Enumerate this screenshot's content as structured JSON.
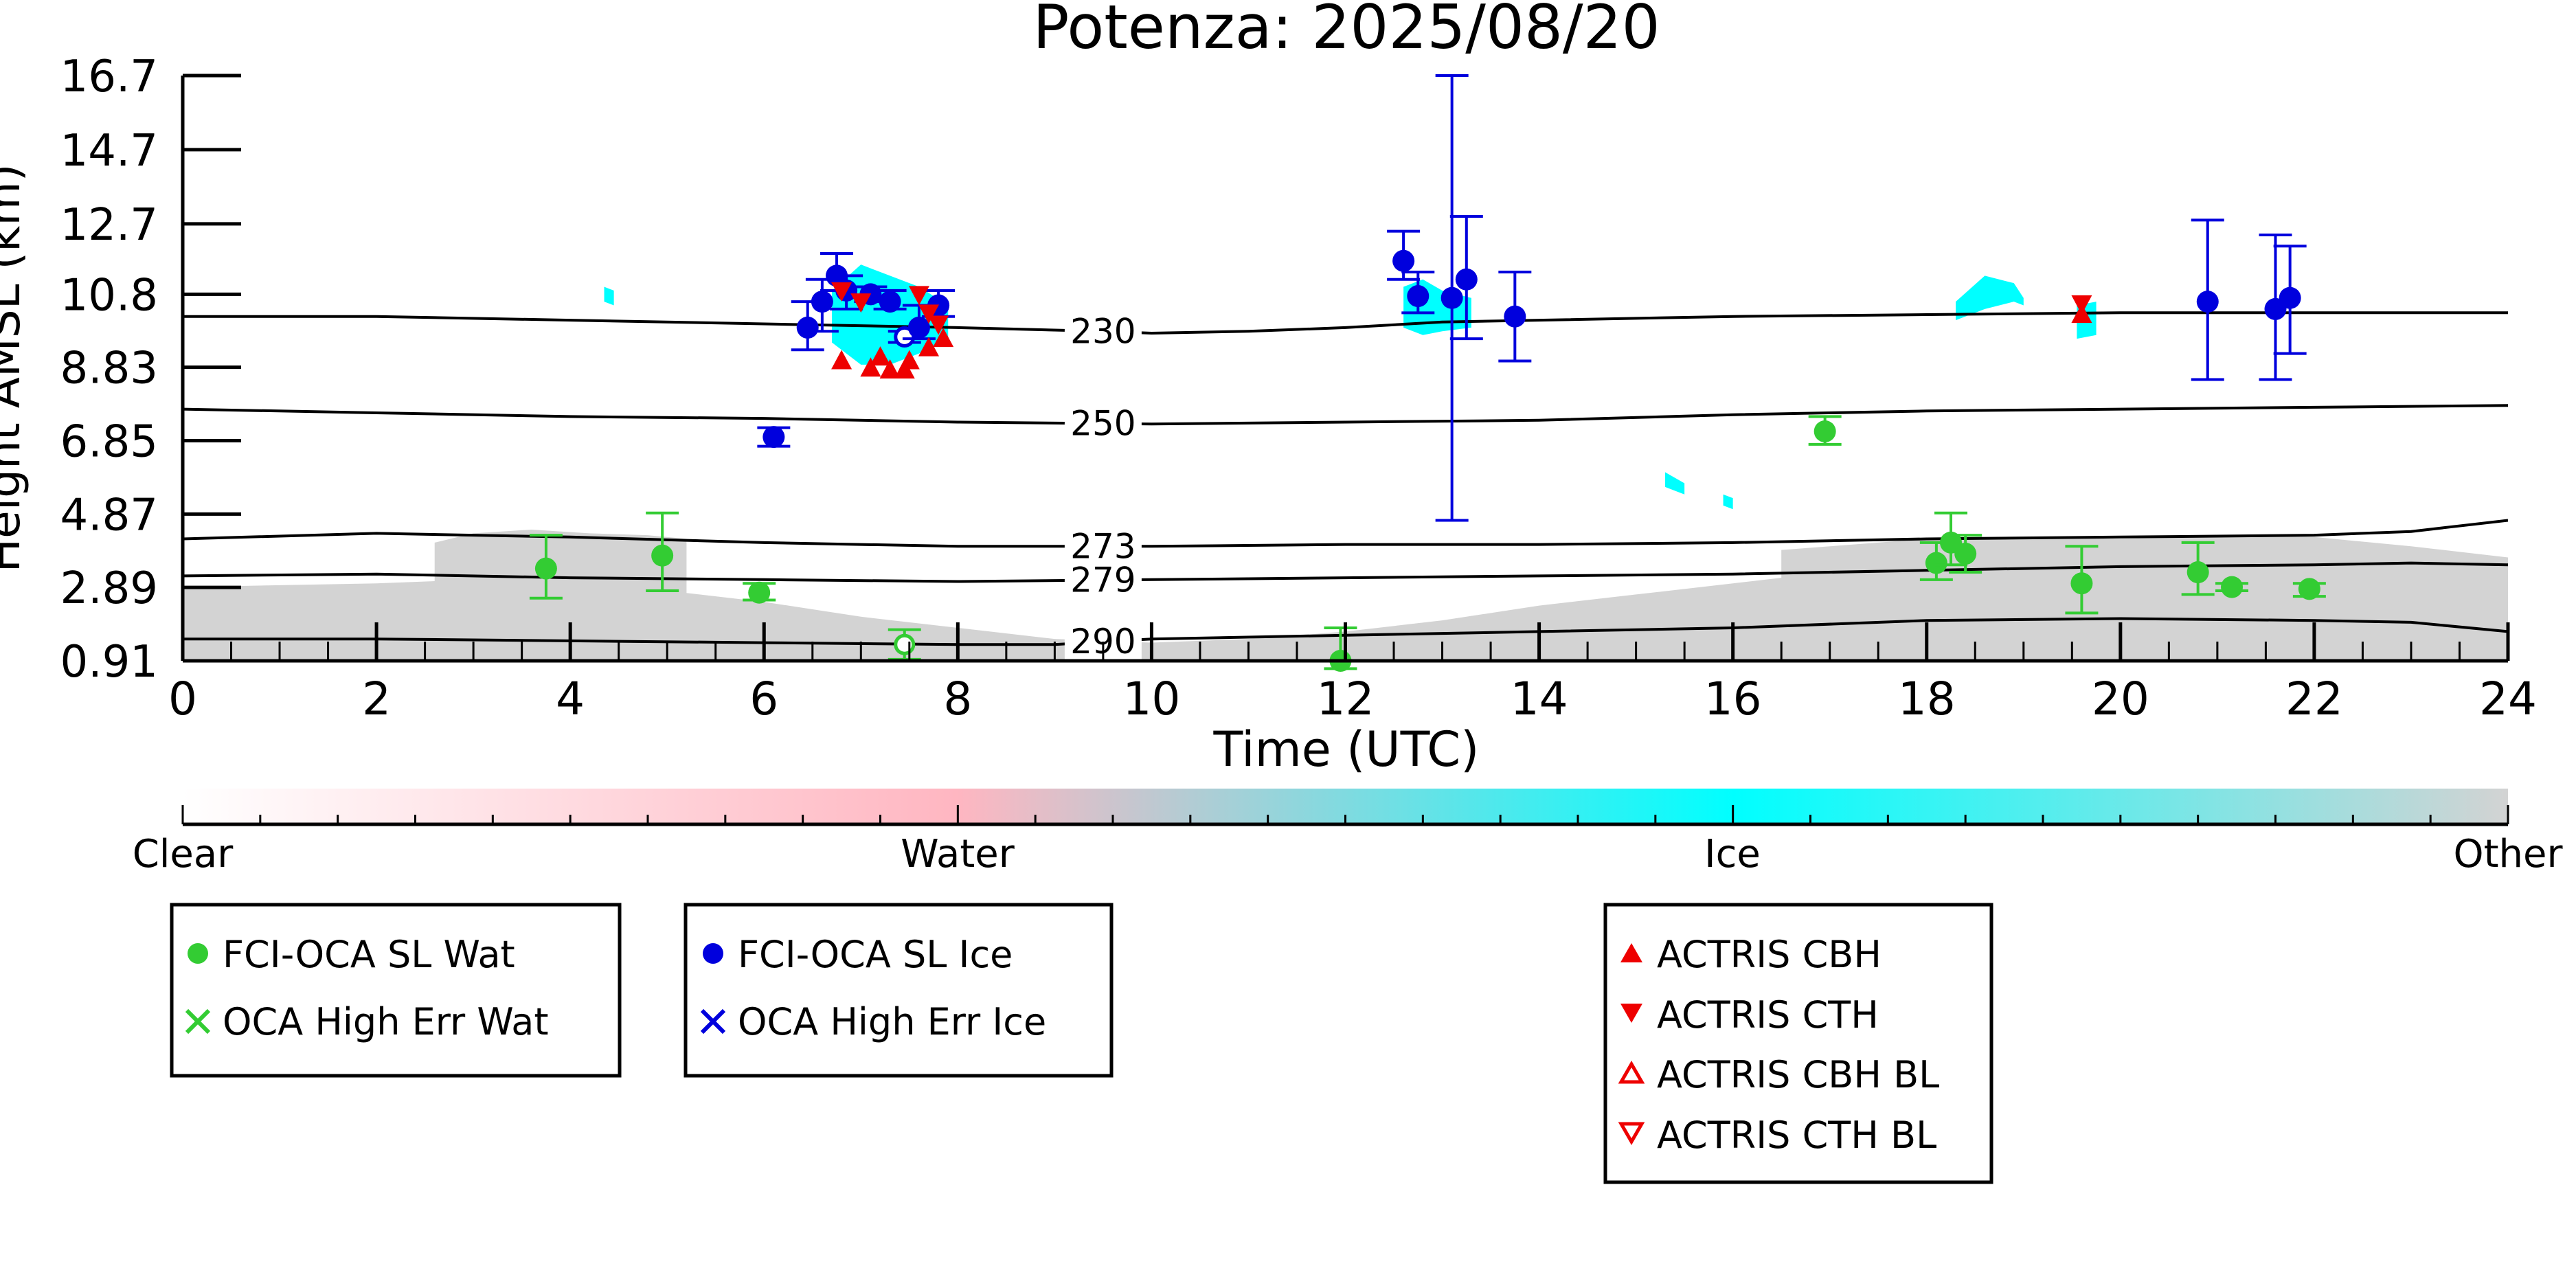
{
  "chart_data": {
    "type": "scatter",
    "title": "Potenza: 2025/08/20",
    "xlabel": "Time (UTC)",
    "ylabel": "Height AMSL (km)",
    "xlim": [
      0,
      24
    ],
    "ylim": [
      0.91,
      16.7
    ],
    "x_ticks": [
      "0",
      "2",
      "4",
      "6",
      "8",
      "10",
      "12",
      "14",
      "16",
      "18",
      "20",
      "22",
      "24"
    ],
    "y_ticks": [
      "0.91",
      "2.89",
      "4.87",
      "6.85",
      "8.83",
      "10.8",
      "12.7",
      "14.7",
      "16.7"
    ],
    "colorbar": {
      "labels": [
        "Clear",
        "Water",
        "Ice",
        "Other"
      ],
      "colors": [
        "#ffffff",
        "#ffb6c1",
        "#00ffff",
        "#d3d3d3"
      ]
    },
    "legend_water": [
      "FCI-OCA SL Wat",
      "OCA High Err Wat"
    ],
    "legend_ice": [
      "FCI-OCA SL Ice",
      "OCA High Err Ice"
    ],
    "legend_actris": [
      "ACTRIS CBH",
      "ACTRIS CTH",
      "ACTRIS CBH BL",
      "ACTRIS CTH BL"
    ],
    "series_colors": {
      "water": "#33cc33",
      "ice": "#0000dd",
      "actris": "#ee0000",
      "isotherm": "#000000"
    },
    "isotherms": [
      {
        "label": "230",
        "label_x": 9.5,
        "points": [
          [
            0,
            10.2
          ],
          [
            2,
            10.2
          ],
          [
            4,
            10.1
          ],
          [
            6,
            10.0
          ],
          [
            8,
            9.9
          ],
          [
            9.5,
            9.8
          ],
          [
            10,
            9.75
          ],
          [
            11,
            9.8
          ],
          [
            12,
            9.9
          ],
          [
            13,
            10.05
          ],
          [
            14,
            10.1
          ],
          [
            16,
            10.2
          ],
          [
            18,
            10.25
          ],
          [
            20,
            10.3
          ],
          [
            22,
            10.3
          ],
          [
            24,
            10.3
          ]
        ]
      },
      {
        "label": "250",
        "label_x": 9.5,
        "points": [
          [
            0,
            7.7
          ],
          [
            2,
            7.6
          ],
          [
            4,
            7.5
          ],
          [
            6,
            7.45
          ],
          [
            8,
            7.35
          ],
          [
            10,
            7.3
          ],
          [
            12,
            7.35
          ],
          [
            14,
            7.4
          ],
          [
            16,
            7.55
          ],
          [
            18,
            7.65
          ],
          [
            20,
            7.7
          ],
          [
            22,
            7.75
          ],
          [
            24,
            7.8
          ]
        ]
      },
      {
        "label": "273",
        "label_x": 9.5,
        "points": [
          [
            0,
            4.2
          ],
          [
            2,
            4.35
          ],
          [
            4,
            4.25
          ],
          [
            6,
            4.1
          ],
          [
            8,
            4.0
          ],
          [
            10,
            4.0
          ],
          [
            12,
            4.05
          ],
          [
            14,
            4.05
          ],
          [
            16,
            4.1
          ],
          [
            18,
            4.2
          ],
          [
            20,
            4.25
          ],
          [
            22,
            4.3
          ],
          [
            23,
            4.4
          ],
          [
            24,
            4.7
          ]
        ]
      },
      {
        "label": "279",
        "label_x": 9.5,
        "points": [
          [
            0,
            3.2
          ],
          [
            2,
            3.25
          ],
          [
            4,
            3.15
          ],
          [
            6,
            3.1
          ],
          [
            8,
            3.05
          ],
          [
            10,
            3.1
          ],
          [
            12,
            3.15
          ],
          [
            14,
            3.2
          ],
          [
            16,
            3.25
          ],
          [
            18,
            3.35
          ],
          [
            20,
            3.45
          ],
          [
            22,
            3.5
          ],
          [
            23,
            3.55
          ],
          [
            24,
            3.5
          ]
        ]
      },
      {
        "label": "290",
        "label_x": 9.5,
        "points": [
          [
            0,
            1.5
          ],
          [
            2,
            1.5
          ],
          [
            4,
            1.45
          ],
          [
            6,
            1.4
          ],
          [
            8,
            1.35
          ],
          [
            9,
            1.35
          ],
          [
            10,
            1.5
          ],
          [
            12,
            1.6
          ],
          [
            14,
            1.7
          ],
          [
            16,
            1.8
          ],
          [
            18,
            2.0
          ],
          [
            20,
            2.05
          ],
          [
            22,
            2.0
          ],
          [
            23,
            1.95
          ],
          [
            24,
            1.7
          ]
        ]
      }
    ],
    "cloud_field": [
      {
        "phase": "other",
        "top": [
          [
            0,
            2.9
          ],
          [
            2,
            3.0
          ],
          [
            3,
            3.1
          ],
          [
            4,
            3.0
          ],
          [
            5,
            2.8
          ],
          [
            6,
            2.5
          ],
          [
            7,
            2.1
          ],
          [
            8,
            1.8
          ],
          [
            9,
            1.5
          ],
          [
            10,
            1.4
          ],
          [
            11,
            1.5
          ],
          [
            12,
            1.7
          ],
          [
            13,
            2.0
          ],
          [
            14,
            2.4
          ],
          [
            15,
            2.7
          ],
          [
            16,
            3.0
          ],
          [
            17,
            3.3
          ],
          [
            18,
            3.5
          ],
          [
            19,
            3.4
          ],
          [
            20,
            3.3
          ],
          [
            21,
            3.3
          ],
          [
            22,
            3.5
          ],
          [
            23,
            3.7
          ],
          [
            24,
            3.4
          ]
        ]
      },
      {
        "phase": "other",
        "top": [
          [
            16.5,
            3.9
          ],
          [
            17,
            4.0
          ],
          [
            18,
            4.2
          ],
          [
            19,
            4.25
          ],
          [
            20,
            4.2
          ],
          [
            21,
            4.3
          ],
          [
            22,
            4.25
          ],
          [
            23,
            4.0
          ],
          [
            24,
            3.7
          ]
        ]
      },
      {
        "phase": "other",
        "top": [
          [
            2.6,
            4.1
          ],
          [
            3.0,
            4.35
          ],
          [
            3.6,
            4.45
          ],
          [
            4.2,
            4.35
          ],
          [
            4.8,
            4.3
          ],
          [
            5.2,
            4.2
          ]
        ]
      },
      {
        "phase": "ice",
        "top": [
          [
            6.7,
            10.9
          ],
          [
            7.0,
            11.6
          ],
          [
            7.3,
            11.3
          ],
          [
            7.6,
            11.0
          ],
          [
            7.9,
            10.5
          ]
        ],
        "bottom": [
          [
            6.7,
            9.5
          ],
          [
            7.0,
            8.9
          ],
          [
            7.3,
            8.9
          ],
          [
            7.6,
            9.2
          ],
          [
            7.9,
            9.6
          ]
        ]
      },
      {
        "phase": "ice",
        "top": [
          [
            12.6,
            11.0
          ],
          [
            12.8,
            11.2
          ],
          [
            13.0,
            10.9
          ],
          [
            13.3,
            10.7
          ]
        ],
        "bottom": [
          [
            12.6,
            9.9
          ],
          [
            12.8,
            9.7
          ],
          [
            13.0,
            9.8
          ],
          [
            13.3,
            9.9
          ]
        ]
      },
      {
        "phase": "ice",
        "top": [
          [
            18.3,
            10.6
          ],
          [
            18.6,
            11.3
          ],
          [
            18.9,
            11.1
          ],
          [
            19.0,
            10.7
          ]
        ],
        "bottom": [
          [
            18.3,
            10.1
          ],
          [
            18.6,
            10.4
          ],
          [
            18.9,
            10.6
          ],
          [
            19.0,
            10.5
          ]
        ]
      },
      {
        "phase": "ice",
        "top": [
          [
            19.55,
            10.5
          ],
          [
            19.75,
            10.6
          ]
        ],
        "bottom": [
          [
            19.55,
            9.6
          ],
          [
            19.75,
            9.7
          ]
        ]
      },
      {
        "phase": "ice",
        "top": [
          [
            15.3,
            6.0
          ],
          [
            15.5,
            5.7
          ]
        ],
        "bottom": [
          [
            15.3,
            5.6
          ],
          [
            15.5,
            5.4
          ]
        ]
      },
      {
        "phase": "ice",
        "top": [
          [
            15.9,
            5.4
          ],
          [
            16.0,
            5.3
          ]
        ],
        "bottom": [
          [
            15.9,
            5.1
          ],
          [
            16.0,
            5.0
          ]
        ]
      },
      {
        "phase": "ice",
        "top": [
          [
            4.35,
            11.0
          ],
          [
            4.45,
            10.9
          ]
        ],
        "bottom": [
          [
            4.35,
            10.6
          ],
          [
            4.45,
            10.5
          ]
        ]
      }
    ],
    "water_points": [
      {
        "x": 3.75,
        "y": 3.4,
        "err_lo": 2.6,
        "err_hi": 4.3
      },
      {
        "x": 4.95,
        "y": 3.75,
        "err_lo": 2.8,
        "err_hi": 4.9
      },
      {
        "x": 5.95,
        "y": 2.75,
        "err_lo": 2.55,
        "err_hi": 3.0
      },
      {
        "x": 7.45,
        "y": 1.35,
        "err_lo": 0.95,
        "err_hi": 1.75,
        "hollow": true
      },
      {
        "x": 11.95,
        "y": 0.91,
        "err_lo": 0.7,
        "err_hi": 1.8
      },
      {
        "x": 16.95,
        "y": 7.1,
        "err_lo": 6.75,
        "err_hi": 7.5
      },
      {
        "x": 18.1,
        "y": 3.55,
        "err_lo": 3.1,
        "err_hi": 4.1
      },
      {
        "x": 18.25,
        "y": 4.1,
        "err_lo": 3.5,
        "err_hi": 4.9
      },
      {
        "x": 18.4,
        "y": 3.8,
        "err_lo": 3.3,
        "err_hi": 4.3
      },
      {
        "x": 19.6,
        "y": 3.0,
        "err_lo": 2.2,
        "err_hi": 4.0
      },
      {
        "x": 20.8,
        "y": 3.3,
        "err_lo": 2.7,
        "err_hi": 4.1
      },
      {
        "x": 21.15,
        "y": 2.9,
        "err_lo": 2.8,
        "err_hi": 3.0
      },
      {
        "x": 21.95,
        "y": 2.85,
        "err_lo": 2.65,
        "err_hi": 3.0
      }
    ],
    "ice_points": [
      {
        "x": 6.1,
        "y": 6.95,
        "err_lo": 6.7,
        "err_hi": 7.2
      },
      {
        "x": 6.45,
        "y": 9.9,
        "err_lo": 9.3,
        "err_hi": 10.6
      },
      {
        "x": 6.6,
        "y": 10.6,
        "err_lo": 9.8,
        "err_hi": 11.2
      },
      {
        "x": 6.75,
        "y": 11.3,
        "err_lo": 10.9,
        "err_hi": 11.9
      },
      {
        "x": 6.85,
        "y": 10.9,
        "err_lo": 10.4,
        "err_hi": 11.3
      },
      {
        "x": 7.1,
        "y": 10.8,
        "err_lo": 10.6,
        "err_hi": 11.0
      },
      {
        "x": 7.3,
        "y": 10.6,
        "err_lo": 10.4,
        "err_hi": 10.9
      },
      {
        "x": 7.45,
        "y": 9.65,
        "err_lo": 9.5,
        "err_hi": 9.8,
        "hollow": true
      },
      {
        "x": 7.6,
        "y": 9.9,
        "err_lo": 9.6,
        "err_hi": 10.5
      },
      {
        "x": 7.8,
        "y": 10.5,
        "err_lo": 10.2,
        "err_hi": 10.9
      },
      {
        "x": 12.6,
        "y": 11.7,
        "err_lo": 11.2,
        "err_hi": 12.5
      },
      {
        "x": 12.75,
        "y": 10.75,
        "err_lo": 10.3,
        "err_hi": 11.4
      },
      {
        "x": 13.1,
        "y": 10.7,
        "err_lo": 4.7,
        "err_hi": 16.7
      },
      {
        "x": 13.25,
        "y": 11.2,
        "err_lo": 9.6,
        "err_hi": 12.9
      },
      {
        "x": 13.75,
        "y": 10.2,
        "err_lo": 9.0,
        "err_hi": 11.4
      },
      {
        "x": 20.9,
        "y": 10.6,
        "err_lo": 8.5,
        "err_hi": 12.8
      },
      {
        "x": 21.6,
        "y": 10.4,
        "err_lo": 8.5,
        "err_hi": 12.4
      },
      {
        "x": 21.75,
        "y": 10.7,
        "err_lo": 9.2,
        "err_hi": 12.1
      }
    ],
    "actris_cbh": [
      {
        "x": 6.8,
        "y": 9.0
      },
      {
        "x": 7.1,
        "y": 8.8
      },
      {
        "x": 7.2,
        "y": 9.1
      },
      {
        "x": 7.3,
        "y": 8.75
      },
      {
        "x": 7.45,
        "y": 8.75
      },
      {
        "x": 7.5,
        "y": 9.0
      },
      {
        "x": 7.7,
        "y": 9.35
      },
      {
        "x": 7.85,
        "y": 9.6
      },
      {
        "x": 19.6,
        "y": 10.25
      }
    ],
    "actris_cth": [
      {
        "x": 6.8,
        "y": 10.9
      },
      {
        "x": 7.0,
        "y": 10.6
      },
      {
        "x": 7.6,
        "y": 10.8
      },
      {
        "x": 7.7,
        "y": 10.3
      },
      {
        "x": 7.8,
        "y": 10.0
      },
      {
        "x": 19.6,
        "y": 10.55
      }
    ]
  }
}
